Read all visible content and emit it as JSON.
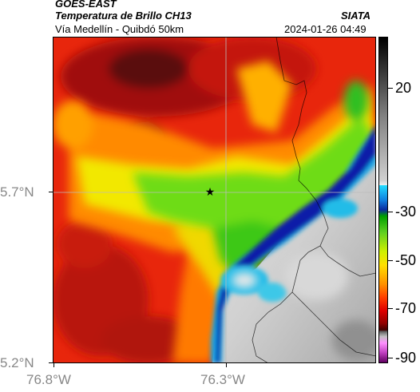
{
  "header": {
    "satellite": "GOES-EAST",
    "product": "Temperatura de Brillo CH13",
    "source": "SIATA",
    "region": "Vía Medellín - Quibdó 50km",
    "datetime": "2024-01-26 04:49"
  },
  "axes": {
    "x_ticks": [
      "76.8°W",
      "76.3°W"
    ],
    "y_ticks": [
      "5.7°N",
      "5.2°N"
    ]
  },
  "colorbar": {
    "ticks": [
      "20",
      "-30",
      "-50",
      "-70",
      "-90"
    ]
  },
  "marker": {
    "symbol": "★"
  },
  "colors": {
    "frame": "#000000",
    "axis_label": "#888888",
    "grid": "#bbbbbb"
  }
}
